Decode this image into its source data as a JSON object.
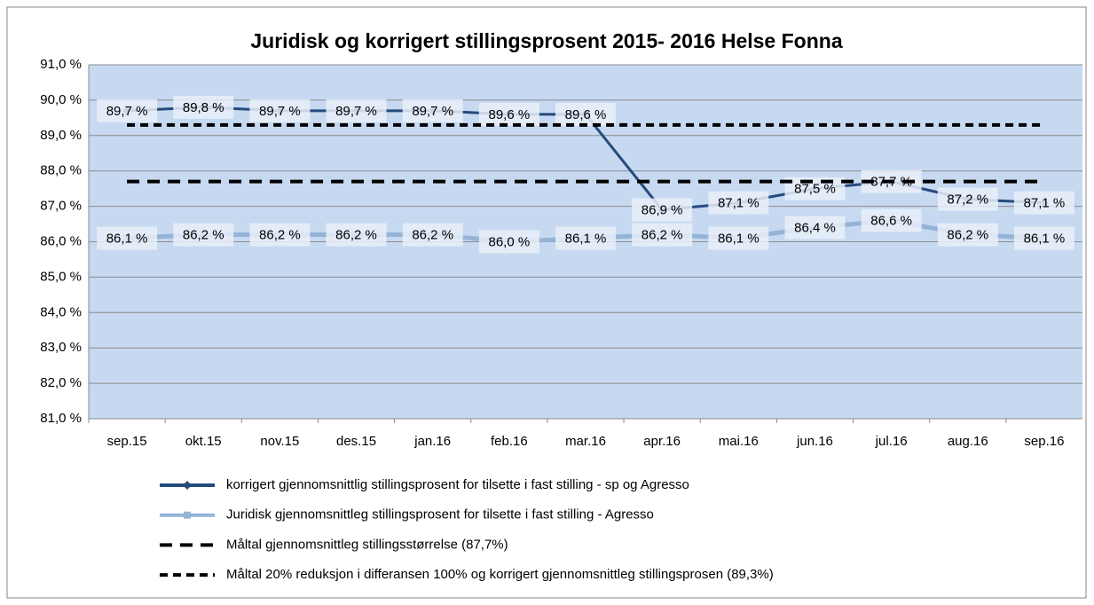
{
  "chart_data": {
    "type": "line",
    "title": "Juridisk og korrigert stillingsprosent 2015- 2016 Helse Fonna",
    "categories": [
      "sep.15",
      "okt.15",
      "nov.15",
      "des.15",
      "jan.16",
      "feb.16",
      "mar.16",
      "apr.16",
      "mai.16",
      "jun.16",
      "jul.16",
      "aug.16",
      "sep.16"
    ],
    "series": [
      {
        "name": "korrigert gjennomsnittlig stillingsprosent for tilsette i fast stilling  - sp og Agresso",
        "color": "#254a7c",
        "line_style": "solid",
        "marker": "diamond",
        "values": [
          89.7,
          89.8,
          89.7,
          89.7,
          89.7,
          89.6,
          89.6,
          86.9,
          87.1,
          87.5,
          87.7,
          87.2,
          87.1
        ],
        "value_labels": [
          "89,7 %",
          "89,8 %",
          "89,7 %",
          "89,7 %",
          "89,7 %",
          "89,6 %",
          "89,6 %",
          "86,9 %",
          "87,1 %",
          "87,5 %",
          "87,7 %",
          "87,2 %",
          "87,1 %"
        ]
      },
      {
        "name": "Juridisk gjennomsnittleg stillingsprosent for tilsette i fast stilling - Agresso",
        "color": "#95b3d7",
        "line_style": "solid",
        "marker": "square",
        "values": [
          86.1,
          86.2,
          86.2,
          86.2,
          86.2,
          86.0,
          86.1,
          86.2,
          86.1,
          86.4,
          86.6,
          86.2,
          86.1
        ],
        "value_labels": [
          "86,1 %",
          "86,2 %",
          "86,2 %",
          "86,2 %",
          "86,2 %",
          "86,0 %",
          "86,1 %",
          "86,2 %",
          "86,1 %",
          "86,4 %",
          "86,6 %",
          "86,2 %",
          "86,1 %"
        ]
      },
      {
        "name": "Måltal gjennomsnittleg stillingsstørrelse (87,7%)",
        "color": "#000000",
        "line_style": "long-dash",
        "values": [
          87.7,
          87.7,
          87.7,
          87.7,
          87.7,
          87.7,
          87.7,
          87.7,
          87.7,
          87.7,
          87.7,
          87.7,
          87.7
        ]
      },
      {
        "name": "Måltal 20% reduksjon i differansen 100% og korrigert gjennomsnittleg stillingsprosen (89,3%)",
        "color": "#000000",
        "line_style": "dash",
        "values": [
          89.3,
          89.3,
          89.3,
          89.3,
          89.3,
          89.3,
          89.3,
          89.3,
          89.3,
          89.3,
          89.3,
          89.3,
          89.3
        ]
      }
    ],
    "ylim": [
      81,
      91
    ],
    "yticks": [
      {
        "value": 81,
        "label": "81,0 %"
      },
      {
        "value": 82,
        "label": "82,0 %"
      },
      {
        "value": 83,
        "label": "83,0 %"
      },
      {
        "value": 84,
        "label": "84,0 %"
      },
      {
        "value": 85,
        "label": "85,0 %"
      },
      {
        "value": 86,
        "label": "86,0 %"
      },
      {
        "value": 87,
        "label": "87,0 %"
      },
      {
        "value": 88,
        "label": "88,0 %"
      },
      {
        "value": 89,
        "label": "89,0 %"
      },
      {
        "value": 90,
        "label": "90,0 %"
      },
      {
        "value": 91,
        "label": "91,0 %"
      }
    ],
    "grid": true,
    "legend": "bottom"
  }
}
